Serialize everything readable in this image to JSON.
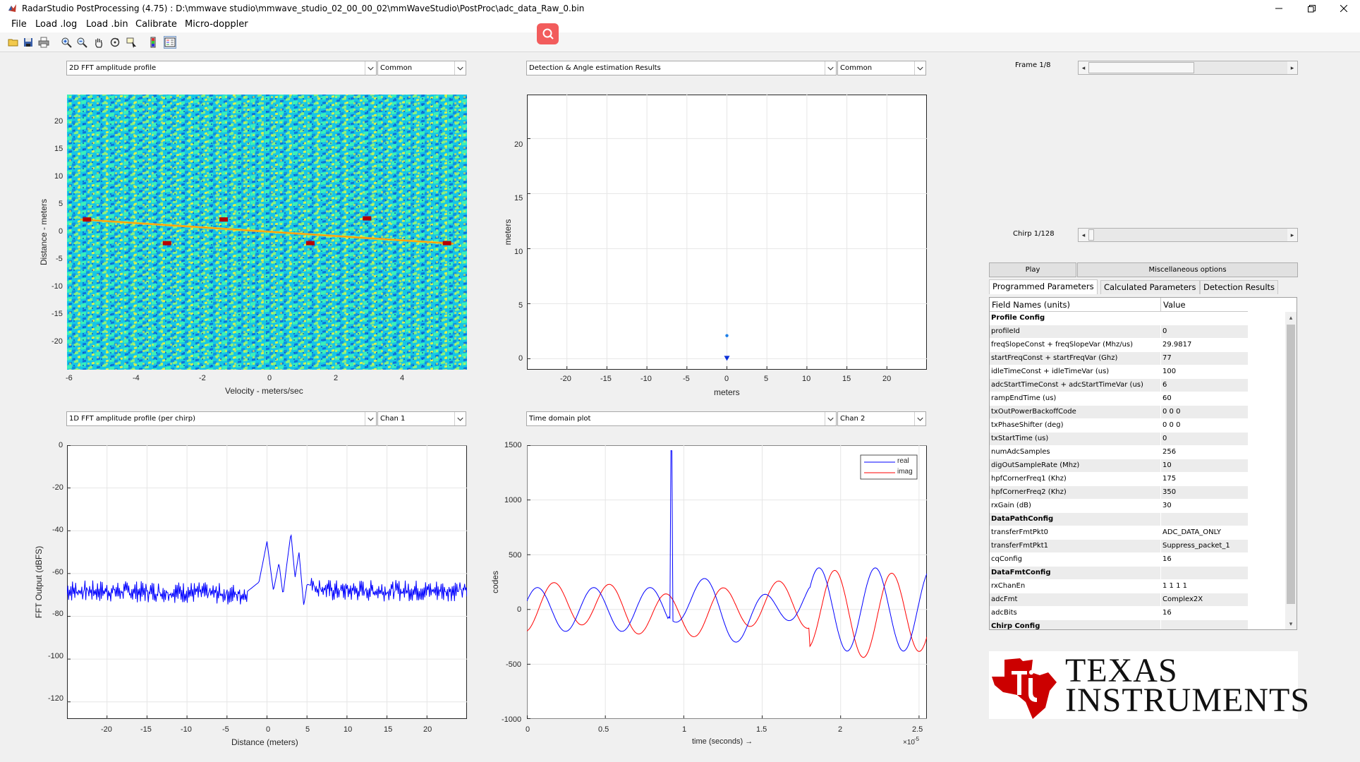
{
  "window": {
    "title": "RadarStudio PostProcessing (4.75)  : D:\\mmwave studio\\mmwave_studio_02_00_00_02\\mmWaveStudio\\PostProc\\adc_data_Raw_0.bin"
  },
  "menu": [
    "File",
    "Load .log",
    "Load .bin",
    "Calibrate",
    "Micro-doppler"
  ],
  "toolbar_icons": [
    "open-file-icon",
    "save-icon",
    "print-icon",
    "zoom-in-icon",
    "zoom-out-icon",
    "pan-hand-icon",
    "rotate-icon",
    "data-cursor-icon",
    "colorbar-icon",
    "legend-icon"
  ],
  "panels": {
    "top_left": {
      "dropdown": "2D FFT amplitude profile",
      "channel": "Common",
      "xlabel": "Velocity - meters/sec",
      "ylabel": "Distance - meters",
      "xticks": [
        "-6",
        "-4",
        "-2",
        "0",
        "2",
        "4"
      ],
      "yticks": [
        "20",
        "15",
        "10",
        "5",
        "0",
        "-5",
        "-10",
        "-15",
        "-20"
      ]
    },
    "top_right": {
      "dropdown": "Detection & Angle estimation Results",
      "channel": "Common",
      "xlabel": "meters",
      "ylabel": "meters",
      "xticks": [
        "-20",
        "-15",
        "-10",
        "-5",
        "0",
        "5",
        "10",
        "15",
        "20"
      ],
      "yticks": [
        "20",
        "15",
        "10",
        "5",
        "0"
      ]
    },
    "bottom_left": {
      "dropdown": "1D FFT amplitude profile (per chirp)",
      "channel": "Chan 1",
      "xlabel": "Distance (meters)",
      "ylabel": "FFT Output (dBFS)",
      "xticks": [
        "-20",
        "-15",
        "-10",
        "-5",
        "0",
        "5",
        "10",
        "15",
        "20"
      ],
      "yticks": [
        "0",
        "-20",
        "-40",
        "-60",
        "-80",
        "-100",
        "-120"
      ]
    },
    "bottom_right": {
      "dropdown": "Time domain plot",
      "channel": "Chan 2",
      "xlabel": "time  (seconds) →",
      "ylabel": "codes",
      "xticks": [
        "0",
        "0.5",
        "1",
        "1.5",
        "2",
        "2.5"
      ],
      "yticks": [
        "1500",
        "1000",
        "500",
        "0",
        "-500",
        "-1000"
      ],
      "exponent": "×10",
      "exponent_power": "-5",
      "legend": [
        "real",
        "imag"
      ]
    }
  },
  "chart_data": [
    {
      "type": "heatmap",
      "xlabel": "Velocity - meters/sec",
      "ylabel": "Distance - meters",
      "xlim": [
        -6,
        6
      ],
      "ylim": [
        -25,
        25
      ],
      "colormap": "jet",
      "highlights": [
        {
          "x": -5.4,
          "y": 2.3
        },
        {
          "x": -1.3,
          "y": 2.3
        },
        {
          "x": 3.0,
          "y": 2.5
        },
        {
          "x": -3.0,
          "y": -2.0
        },
        {
          "x": 1.3,
          "y": -2.0
        },
        {
          "x": 5.4,
          "y": -2.0
        }
      ]
    },
    {
      "type": "scatter",
      "xlabel": "meters",
      "ylabel": "meters",
      "xlim": [
        -25,
        25
      ],
      "ylim": [
        -1,
        24
      ],
      "points": [
        {
          "x": 0,
          "y": 2.1
        },
        {
          "x": 0,
          "y": 0
        }
      ]
    },
    {
      "type": "line",
      "xlabel": "Distance (meters)",
      "ylabel": "FFT Output (dBFS)",
      "xlim": [
        -25,
        25
      ],
      "ylim": [
        -128,
        0
      ],
      "series": [
        {
          "color": "#0000ff",
          "points": [
            [
              -25,
              -68
            ],
            [
              -8,
              -69
            ],
            [
              -3,
              -70
            ],
            [
              -1,
              -64
            ],
            [
              0,
              -45
            ],
            [
              0.8,
              -68
            ],
            [
              1.5,
              -55
            ],
            [
              2,
              -70
            ],
            [
              2.5,
              -55
            ],
            [
              3,
              -41
            ],
            [
              3.5,
              -62
            ],
            [
              4,
              -50
            ],
            [
              4.6,
              -75
            ],
            [
              5,
              -65
            ],
            [
              8,
              -68
            ],
            [
              25,
              -68
            ]
          ]
        }
      ]
    },
    {
      "type": "line",
      "xlabel": "time  (seconds)",
      "ylabel": "codes",
      "xlim": [
        0,
        2.55
      ],
      "ylim": [
        -1000,
        1500
      ],
      "x_scale": "1e-5",
      "series": [
        {
          "name": "real",
          "color": "#0000ff",
          "spike": {
            "x": 0.92,
            "y": 1450
          }
        },
        {
          "name": "imag",
          "color": "#ff0000"
        }
      ]
    }
  ],
  "right_panel": {
    "frame_label": "Frame 1/8",
    "chirp_label": "Chirp 1/128",
    "frame_value": 0.0,
    "chirp_value": 0.0,
    "play_button": "Play",
    "misc_button": "Miscellaneous options",
    "tabs": [
      "Programmed Parameters",
      "Calculated Parameters",
      "Detection Results"
    ],
    "table": {
      "headers": [
        "Field Names     (units)",
        "Value"
      ],
      "rows": [
        {
          "name": "Profile Config",
          "value": "",
          "section": true
        },
        {
          "name": "profileId",
          "value": "0"
        },
        {
          "name": "freqSlopeConst + freqSlopeVar (Mhz/us)",
          "value": "29.9817"
        },
        {
          "name": "startFreqConst + startFreqVar (Ghz)",
          "value": "77"
        },
        {
          "name": "idleTimeConst + idleTimeVar (us)",
          "value": "100"
        },
        {
          "name": "adcStartTimeConst + adcStartTimeVar (us)",
          "value": "6"
        },
        {
          "name": "rampEndTime (us)",
          "value": "60"
        },
        {
          "name": "txOutPowerBackoffCode",
          "value": "0 0 0"
        },
        {
          "name": "txPhaseShifter (deg)",
          "value": "0 0 0"
        },
        {
          "name": "txStartTime (us)",
          "value": "0"
        },
        {
          "name": "numAdcSamples",
          "value": "256"
        },
        {
          "name": "digOutSampleRate (Mhz)",
          "value": "10"
        },
        {
          "name": "hpfCornerFreq1 (Khz)",
          "value": "175"
        },
        {
          "name": "hpfCornerFreq2 (Khz)",
          "value": "350"
        },
        {
          "name": "rxGain (dB)",
          "value": "30"
        },
        {
          "name": "DataPathConfig",
          "value": "",
          "section": true
        },
        {
          "name": "transferFmtPkt0",
          "value": "ADC_DATA_ONLY"
        },
        {
          "name": "transferFmtPkt1",
          "value": "Suppress_packet_1"
        },
        {
          "name": "cqConfig",
          "value": "16"
        },
        {
          "name": "DataFmtConfig",
          "value": "",
          "section": true
        },
        {
          "name": "rxChanEn",
          "value": "1 1 1 1"
        },
        {
          "name": "adcFmt",
          "value": "Complex2X"
        },
        {
          "name": "adcBits",
          "value": "16"
        },
        {
          "name": "Chirp Config",
          "value": "",
          "section": true
        }
      ]
    },
    "logo": {
      "line1": "Texas",
      "line2": "Instruments",
      "color": "#cc0000"
    }
  }
}
